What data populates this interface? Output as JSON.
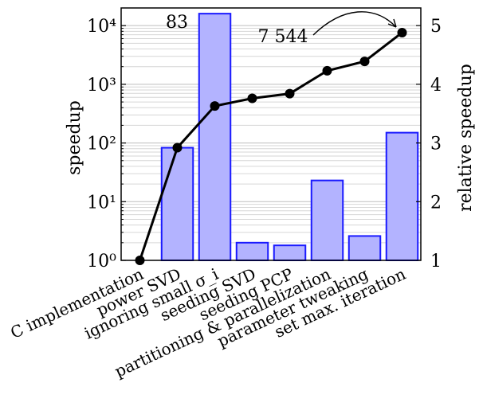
{
  "chart_data": {
    "type": "bar+line",
    "categories": [
      "C implementation",
      "power SVD",
      "ignoring small σ_i",
      "seeding SVD",
      "seeding PCP",
      "partitioning & parallelization",
      "parameter tweaking",
      "set max. iteration"
    ],
    "bar_series": {
      "axis": "left",
      "scale": "log",
      "values": [
        1,
        83,
        16000,
        2.0,
        1.8,
        23,
        2.6,
        150
      ],
      "fill": "#b3b3ff",
      "stroke": "#1a1aff"
    },
    "line_series": {
      "axis": "right",
      "values": [
        1.0,
        2.92,
        3.63,
        3.76,
        3.84,
        4.23,
        4.39,
        4.88
      ],
      "color": "#000000"
    },
    "ylabel_left": "speedup",
    "ylabel_right": "relative speedup",
    "ylim_left": [
      1,
      20000
    ],
    "ylim_right": [
      1,
      5.3
    ],
    "left_ticks": [
      {
        "value": 1,
        "label": "10⁰"
      },
      {
        "value": 10,
        "label": "10¹"
      },
      {
        "value": 100,
        "label": "10²"
      },
      {
        "value": 1000,
        "label": "10³"
      },
      {
        "value": 10000,
        "label": "10⁴"
      }
    ],
    "right_ticks": [
      {
        "value": 1,
        "label": "1"
      },
      {
        "value": 2,
        "label": "2"
      },
      {
        "value": 3,
        "label": "3"
      },
      {
        "value": 4,
        "label": "4"
      },
      {
        "value": 5,
        "label": "5"
      }
    ],
    "annotations": {
      "bar_label": "83",
      "total_label": "7 544"
    },
    "grid": true
  }
}
